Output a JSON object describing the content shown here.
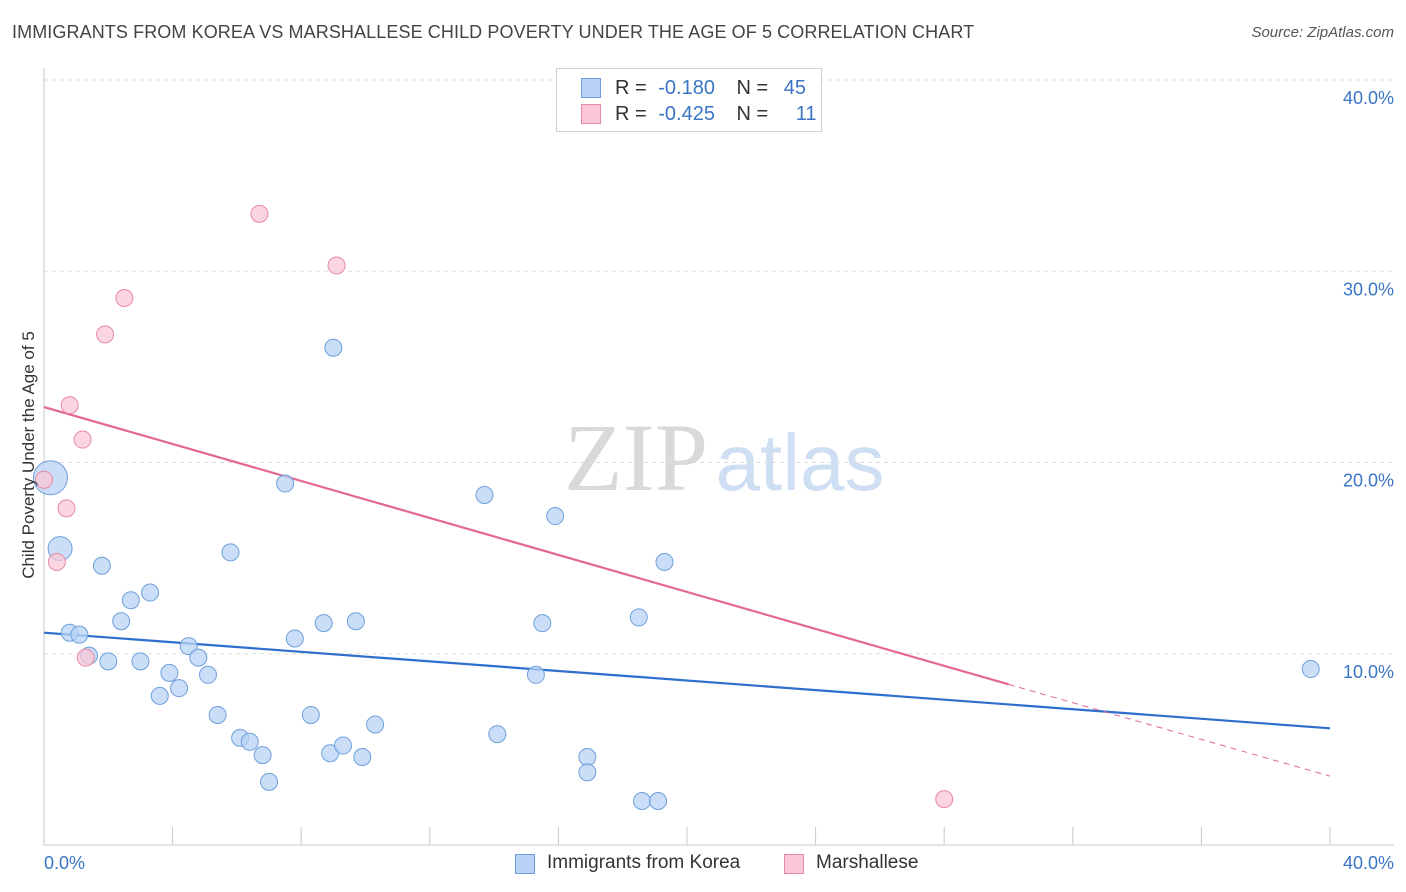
{
  "header": {
    "title": "IMMIGRANTS FROM KOREA VS MARSHALLESE CHILD POVERTY UNDER THE AGE OF 5 CORRELATION CHART",
    "source": "Source: ZipAtlas.com"
  },
  "watermark": {
    "zip": "ZIP",
    "atlas": "atlas"
  },
  "colors": {
    "blue_fill": "#b8d3f5",
    "blue_stroke": "#6e9fdc",
    "blue_line": "#2e6fce",
    "pink_fill": "#f9c7d5",
    "pink_stroke": "#e88aa6",
    "pink_line": "#e26891",
    "axis_label": "#3a75c4",
    "grid": "#dddddd"
  },
  "legend": {
    "rows": [
      {
        "r_label": "R =",
        "r_value": "-0.180",
        "n_label": "N =",
        "n_value": "45"
      },
      {
        "r_label": "R =",
        "r_value": "-0.425",
        "n_label": "N =",
        "n_value": "11"
      }
    ]
  },
  "chart_data": {
    "type": "scatter",
    "title": "IMMIGRANTS FROM KOREA VS MARSHALLESE CHILD POVERTY UNDER THE AGE OF 5 CORRELATION CHART",
    "xlabel": "",
    "ylabel": "Child Poverty Under the Age of 5",
    "xlim": [
      0,
      40
    ],
    "ylim": [
      0,
      40
    ],
    "x_tick_labels": [
      "0.0%",
      "40.0%"
    ],
    "y_tick_values": [
      10,
      20,
      30,
      40
    ],
    "y_tick_labels": [
      "10.0%",
      "20.0%",
      "30.0%",
      "40.0%"
    ],
    "grid": true,
    "series": [
      {
        "name": "Immigrants from Korea",
        "color": "#b8d3f5",
        "points": [
          {
            "x": 0.2,
            "y": 19.2,
            "size": "large"
          },
          {
            "x": 0.5,
            "y": 15.5,
            "size": "medium"
          },
          {
            "x": 0.8,
            "y": 11.1
          },
          {
            "x": 1.1,
            "y": 11.0
          },
          {
            "x": 1.4,
            "y": 9.9
          },
          {
            "x": 1.8,
            "y": 14.6
          },
          {
            "x": 2.0,
            "y": 9.6
          },
          {
            "x": 2.4,
            "y": 11.7
          },
          {
            "x": 2.7,
            "y": 12.8
          },
          {
            "x": 3.0,
            "y": 9.6
          },
          {
            "x": 3.3,
            "y": 13.2
          },
          {
            "x": 3.6,
            "y": 7.8
          },
          {
            "x": 3.9,
            "y": 9.0
          },
          {
            "x": 4.2,
            "y": 8.2
          },
          {
            "x": 4.5,
            "y": 10.4
          },
          {
            "x": 4.8,
            "y": 9.8
          },
          {
            "x": 5.1,
            "y": 8.9
          },
          {
            "x": 5.4,
            "y": 6.8
          },
          {
            "x": 5.8,
            "y": 15.3
          },
          {
            "x": 6.1,
            "y": 5.6
          },
          {
            "x": 6.4,
            "y": 5.4
          },
          {
            "x": 6.8,
            "y": 4.7
          },
          {
            "x": 7.0,
            "y": 3.3
          },
          {
            "x": 7.5,
            "y": 18.9
          },
          {
            "x": 7.8,
            "y": 10.8
          },
          {
            "x": 8.3,
            "y": 6.8
          },
          {
            "x": 8.7,
            "y": 11.6
          },
          {
            "x": 8.9,
            "y": 4.8
          },
          {
            "x": 9.0,
            "y": 26.0
          },
          {
            "x": 9.3,
            "y": 5.2
          },
          {
            "x": 9.7,
            "y": 11.7
          },
          {
            "x": 9.9,
            "y": 4.6
          },
          {
            "x": 10.3,
            "y": 6.3
          },
          {
            "x": 13.7,
            "y": 18.3
          },
          {
            "x": 14.1,
            "y": 5.8
          },
          {
            "x": 15.3,
            "y": 8.9
          },
          {
            "x": 15.5,
            "y": 11.6
          },
          {
            "x": 15.9,
            "y": 17.2
          },
          {
            "x": 16.9,
            "y": 4.6
          },
          {
            "x": 16.9,
            "y": 3.8
          },
          {
            "x": 18.5,
            "y": 11.9
          },
          {
            "x": 18.6,
            "y": 2.3
          },
          {
            "x": 19.1,
            "y": 2.3
          },
          {
            "x": 19.3,
            "y": 14.8
          },
          {
            "x": 39.4,
            "y": 9.2
          }
        ]
      },
      {
        "name": "Marshallese",
        "color": "#f9c7d5",
        "points": [
          {
            "x": 0.0,
            "y": 19.1
          },
          {
            "x": 0.4,
            "y": 14.8
          },
          {
            "x": 0.7,
            "y": 17.6
          },
          {
            "x": 0.8,
            "y": 23.0
          },
          {
            "x": 1.2,
            "y": 21.2
          },
          {
            "x": 1.3,
            "y": 9.8
          },
          {
            "x": 1.9,
            "y": 26.7
          },
          {
            "x": 2.5,
            "y": 28.6
          },
          {
            "x": 6.7,
            "y": 33.0
          },
          {
            "x": 9.1,
            "y": 30.3
          },
          {
            "x": 28.0,
            "y": 2.4
          }
        ]
      }
    ],
    "trend_lines": [
      {
        "series": "Immigrants from Korea",
        "x": [
          0,
          40
        ],
        "y": [
          11.1,
          6.1
        ],
        "style": "solid"
      },
      {
        "series": "Marshallese",
        "x": [
          0,
          30
        ],
        "y": [
          22.9,
          8.4
        ],
        "style": "solid"
      },
      {
        "series": "Marshallese",
        "x": [
          30,
          40
        ],
        "y": [
          8.4,
          3.6
        ],
        "style": "dashed"
      }
    ]
  },
  "bottom_legend": {
    "items": [
      {
        "label": "Immigrants from Korea"
      },
      {
        "label": "Marshallese"
      }
    ]
  }
}
